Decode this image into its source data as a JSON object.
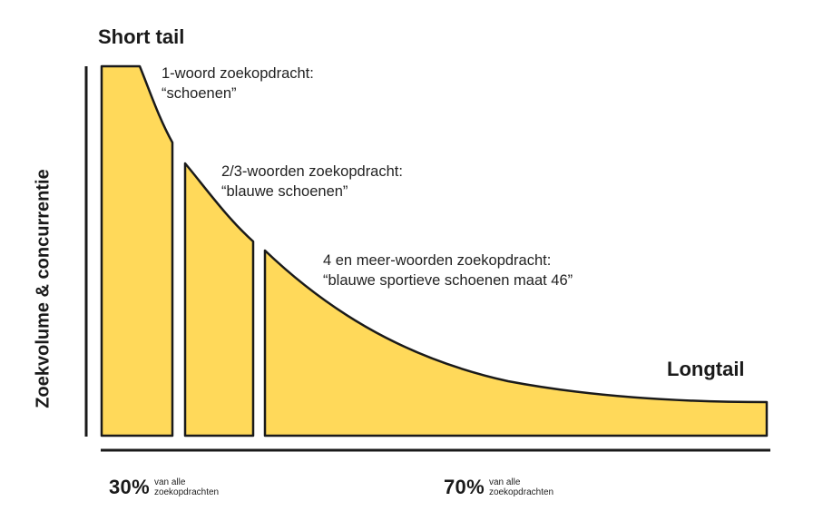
{
  "chart_data": {
    "type": "area",
    "title": "Short tail",
    "tail_label": "Longtail",
    "ylabel": "Zoekvolume & concurrentie",
    "colors": {
      "fill": "#FFD95A",
      "stroke": "#1a1a1a"
    },
    "segments": [
      {
        "name": "1-woord zoekopdracht:",
        "example": "“schoenen”"
      },
      {
        "name": "2/3-woorden zoekopdracht:",
        "example": "“blauwe schoenen”"
      },
      {
        "name": "4 en meer-woorden zoekopdracht:",
        "example": "“blauwe sportieve schoenen maat 46”"
      }
    ],
    "shares": [
      {
        "percent": "30%",
        "line1": "van alle",
        "line2": "zoekopdrachten"
      },
      {
        "percent": "70%",
        "line1": "van alle",
        "line2": "zoekopdrachten"
      }
    ]
  }
}
